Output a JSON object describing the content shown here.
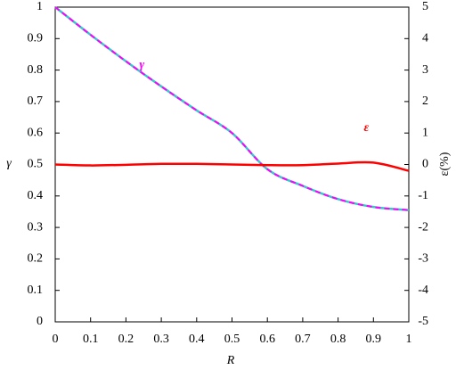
{
  "chart_data": {
    "type": "line",
    "x": [
      0,
      0.1,
      0.2,
      0.3,
      0.4,
      0.5,
      0.6,
      0.7,
      0.8,
      0.9,
      1
    ],
    "series": [
      {
        "color": "#33cccc",
        "values": [
          1.0,
          0.912,
          0.828,
          0.748,
          0.672,
          0.6,
          0.485,
          0.432,
          0.39,
          0.365,
          0.355
        ]
      },
      {
        "color": "#ff00ff",
        "dash": true,
        "values": [
          1.0,
          0.912,
          0.828,
          0.748,
          0.672,
          0.6,
          0.485,
          0.432,
          0.39,
          0.365,
          0.355
        ]
      },
      {
        "color": "#ff0000",
        "axis": "y2",
        "values": [
          0,
          -0.03,
          -0.01,
          0.02,
          0.02,
          0,
          -0.02,
          -0.02,
          0.03,
          0.06,
          -0.2
        ]
      }
    ],
    "annotations": [
      {
        "text": "γ",
        "color": "#ff00ff"
      },
      {
        "text": "ε",
        "color": "#ff0000"
      }
    ],
    "xlabel": "R",
    "ylabel": "γ",
    "y2label": "ε(%)",
    "xlim": [
      0,
      1
    ],
    "xticks": [
      0,
      0.1,
      0.2,
      0.3,
      0.4,
      0.5,
      0.6,
      0.7,
      0.8,
      0.9,
      1
    ],
    "ylim": [
      0,
      1
    ],
    "yticks": [
      0,
      0.1,
      0.2,
      0.3,
      0.4,
      0.5,
      0.6,
      0.7,
      0.8,
      0.9,
      1
    ],
    "y2lim": [
      -5,
      5
    ],
    "y2ticks": [
      -5,
      -4,
      -3,
      -2,
      -1,
      0,
      1,
      2,
      3,
      4,
      5
    ]
  }
}
